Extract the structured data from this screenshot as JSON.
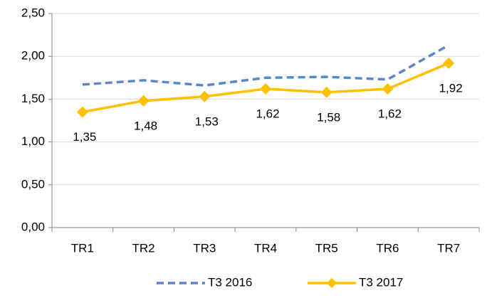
{
  "chart_data": {
    "type": "line",
    "categories": [
      "TR1",
      "TR2",
      "TR3",
      "TR4",
      "TR5",
      "TR6",
      "TR7"
    ],
    "series": [
      {
        "name": "T3 2016",
        "color": "#5b87c5",
        "dashed": true,
        "values": [
          1.67,
          1.72,
          1.66,
          1.75,
          1.76,
          1.73,
          2.13
        ]
      },
      {
        "name": "T3 2017",
        "color": "#ffc000",
        "marker": "diamond",
        "values": [
          1.35,
          1.48,
          1.53,
          1.62,
          1.58,
          1.62,
          1.92
        ],
        "value_labels": [
          "1,35",
          "1,48",
          "1,53",
          "1,62",
          "1,58",
          "1,62",
          "1,92"
        ]
      }
    ],
    "ylim": [
      0,
      2.5
    ],
    "yticks": [
      {
        "value": 0,
        "label": "0,00"
      },
      {
        "value": 0.5,
        "label": "0,50"
      },
      {
        "value": 1,
        "label": "1,00"
      },
      {
        "value": 1.5,
        "label": "1,50"
      },
      {
        "value": 2,
        "label": "2,00"
      },
      {
        "value": 2.5,
        "label": "2,50"
      }
    ],
    "grid": true,
    "legend": "bottom"
  }
}
